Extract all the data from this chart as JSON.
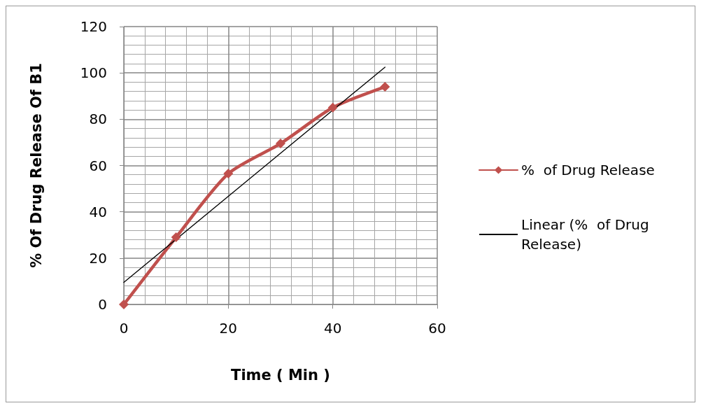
{
  "chart_data": {
    "type": "line",
    "xlabel": "Time ( Min )",
    "ylabel": "% Of Drug Release Of B1",
    "x": [
      0,
      10,
      20,
      30,
      40,
      50
    ],
    "series": [
      {
        "name": "%  of Drug Release",
        "color": "#c0504d",
        "values": [
          0,
          29,
          56.5,
          69.5,
          85,
          94
        ],
        "marker": "diamond"
      },
      {
        "name": "Linear (%  of Drug Release)",
        "color": "#000000",
        "x": [
          0,
          50
        ],
        "values": [
          9.5,
          102.5
        ],
        "marker": "none"
      }
    ],
    "xlim": [
      0,
      60
    ],
    "xticks": [
      0,
      20,
      40,
      60
    ],
    "ylim": [
      0,
      120
    ],
    "yticks": [
      0,
      20,
      40,
      60,
      80,
      100,
      120
    ],
    "grid": true,
    "legend": "right",
    "line_style": "solid"
  }
}
